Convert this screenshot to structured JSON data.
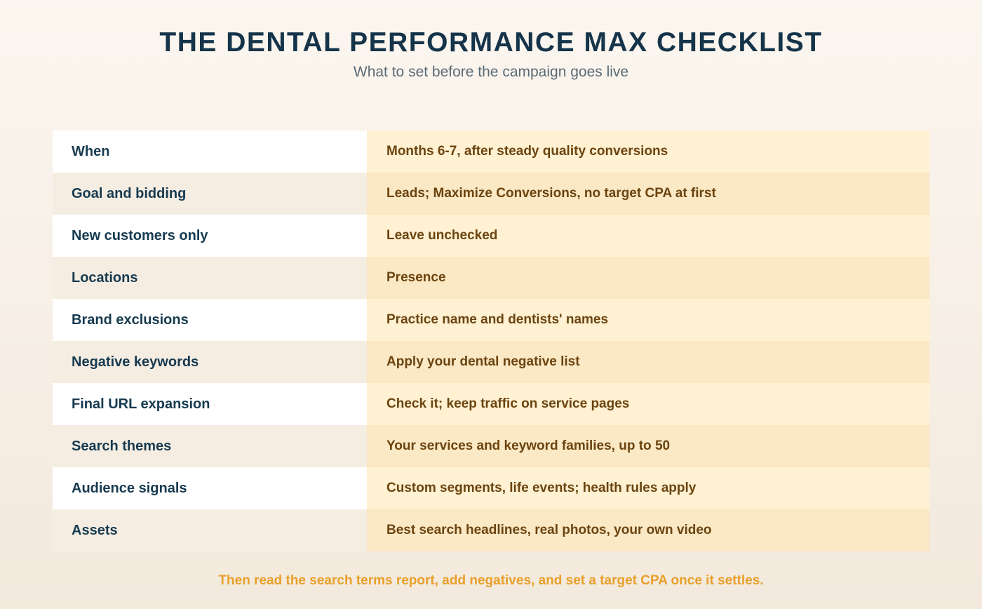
{
  "header": {
    "title": "THE DENTAL PERFORMANCE MAX CHECKLIST",
    "subtitle": "What to set before the campaign goes live"
  },
  "checklist": {
    "rows": [
      {
        "label": "When",
        "value": "Months 6-7, after steady quality conversions"
      },
      {
        "label": "Goal and bidding",
        "value": "Leads; Maximize Conversions, no target CPA at first"
      },
      {
        "label": "New customers only",
        "value": "Leave unchecked"
      },
      {
        "label": "Locations",
        "value": "Presence"
      },
      {
        "label": "Brand exclusions",
        "value": "Practice name and dentists' names"
      },
      {
        "label": "Negative keywords",
        "value": "Apply your dental negative list"
      },
      {
        "label": "Final URL expansion",
        "value": "Check it; keep traffic on service pages"
      },
      {
        "label": "Search themes",
        "value": "Your services and keyword families, up to 50"
      },
      {
        "label": "Audience signals",
        "value": "Custom segments, life events; health rules apply"
      },
      {
        "label": "Assets",
        "value": "Best search headlines, real photos, your own video"
      }
    ]
  },
  "footer": {
    "note": "Then read the search terms report, add negatives, and set a target CPA once it settles."
  },
  "colors": {
    "title": "#15344a",
    "subtitle": "#5b6b76",
    "label_text": "#163a50",
    "value_text": "#6b4410",
    "footer_text": "#e8a02a"
  }
}
